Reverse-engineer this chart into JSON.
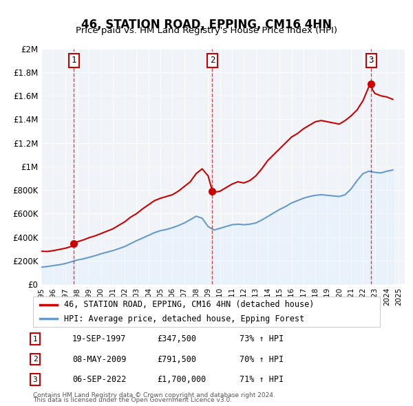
{
  "title": "46, STATION ROAD, EPPING, CM16 4HN",
  "subtitle": "Price paid vs. HM Land Registry's House Price Index (HPI)",
  "x_start": 1995.0,
  "x_end": 2025.5,
  "y_max": 2000000,
  "y_ticks": [
    0,
    200000,
    400000,
    600000,
    800000,
    1000000,
    1200000,
    1400000,
    1600000,
    1800000,
    2000000
  ],
  "y_tick_labels": [
    "£0",
    "£200K",
    "£400K",
    "£600K",
    "£800K",
    "£1M",
    "£1.2M",
    "£1.4M",
    "£1.6M",
    "£1.8M",
    "£2M"
  ],
  "x_ticks": [
    1995,
    1996,
    1997,
    1998,
    1999,
    2000,
    2001,
    2002,
    2003,
    2004,
    2005,
    2006,
    2007,
    2008,
    2009,
    2010,
    2011,
    2012,
    2013,
    2014,
    2015,
    2016,
    2017,
    2018,
    2019,
    2020,
    2021,
    2022,
    2023,
    2024,
    2025
  ],
  "property_color": "#cc0000",
  "hpi_color": "#6699cc",
  "hpi_fill_color": "#ddeeff",
  "background_color": "#f0f4f8",
  "plot_bg_color": "#f0f4f8",
  "grid_color": "#ffffff",
  "purchases": [
    {
      "label": "1",
      "date_str": "19-SEP-1997",
      "year": 1997.72,
      "price": 347500,
      "hpi_pct": "73%"
    },
    {
      "label": "2",
      "date_str": "08-MAY-2009",
      "year": 2009.35,
      "price": 791500,
      "hpi_pct": "70%"
    },
    {
      "label": "3",
      "date_str": "06-SEP-2022",
      "year": 2022.68,
      "price": 1700000,
      "hpi_pct": "71%"
    }
  ],
  "legend_property_label": "46, STATION ROAD, EPPING, CM16 4HN (detached house)",
  "legend_hpi_label": "HPI: Average price, detached house, Epping Forest",
  "footer_line1": "Contains HM Land Registry data © Crown copyright and database right 2024.",
  "footer_line2": "This data is licensed under the Open Government Licence v3.0.",
  "property_series": {
    "years": [
      1995.0,
      1995.5,
      1996.0,
      1996.5,
      1997.0,
      1997.5,
      1997.72,
      1998.0,
      1998.5,
      1999.0,
      1999.5,
      2000.0,
      2000.5,
      2001.0,
      2001.5,
      2002.0,
      2002.5,
      2003.0,
      2003.5,
      2004.0,
      2004.5,
      2005.0,
      2005.5,
      2006.0,
      2006.5,
      2007.0,
      2007.5,
      2008.0,
      2008.5,
      2009.0,
      2009.35,
      2009.5,
      2010.0,
      2010.5,
      2011.0,
      2011.5,
      2012.0,
      2012.5,
      2013.0,
      2013.5,
      2014.0,
      2014.5,
      2015.0,
      2015.5,
      2016.0,
      2016.5,
      2017.0,
      2017.5,
      2018.0,
      2018.5,
      2019.0,
      2019.5,
      2020.0,
      2020.5,
      2021.0,
      2021.5,
      2022.0,
      2022.5,
      2022.68,
      2022.8,
      2023.0,
      2023.5,
      2024.0,
      2024.5
    ],
    "values": [
      280000,
      278000,
      285000,
      295000,
      305000,
      320000,
      347500,
      360000,
      375000,
      395000,
      410000,
      430000,
      450000,
      470000,
      500000,
      530000,
      570000,
      600000,
      640000,
      675000,
      710000,
      730000,
      745000,
      760000,
      790000,
      830000,
      870000,
      940000,
      980000,
      920000,
      791500,
      780000,
      790000,
      820000,
      850000,
      870000,
      860000,
      880000,
      920000,
      980000,
      1050000,
      1100000,
      1150000,
      1200000,
      1250000,
      1280000,
      1320000,
      1350000,
      1380000,
      1390000,
      1380000,
      1370000,
      1360000,
      1390000,
      1430000,
      1480000,
      1560000,
      1680000,
      1700000,
      1650000,
      1620000,
      1600000,
      1590000,
      1570000
    ]
  },
  "hpi_series": {
    "years": [
      1995.0,
      1995.5,
      1996.0,
      1996.5,
      1997.0,
      1997.5,
      1998.0,
      1998.5,
      1999.0,
      1999.5,
      2000.0,
      2000.5,
      2001.0,
      2001.5,
      2002.0,
      2002.5,
      2003.0,
      2003.5,
      2004.0,
      2004.5,
      2005.0,
      2005.5,
      2006.0,
      2006.5,
      2007.0,
      2007.5,
      2008.0,
      2008.5,
      2009.0,
      2009.5,
      2010.0,
      2010.5,
      2011.0,
      2011.5,
      2012.0,
      2012.5,
      2013.0,
      2013.5,
      2014.0,
      2014.5,
      2015.0,
      2015.5,
      2016.0,
      2016.5,
      2017.0,
      2017.5,
      2018.0,
      2018.5,
      2019.0,
      2019.5,
      2020.0,
      2020.5,
      2021.0,
      2021.5,
      2022.0,
      2022.5,
      2023.0,
      2023.5,
      2024.0,
      2024.5
    ],
    "values": [
      145000,
      150000,
      158000,
      165000,
      175000,
      190000,
      205000,
      215000,
      228000,
      242000,
      258000,
      272000,
      285000,
      302000,
      320000,
      345000,
      370000,
      392000,
      415000,
      438000,
      455000,
      465000,
      480000,
      498000,
      520000,
      548000,
      578000,
      560000,
      490000,
      460000,
      475000,
      490000,
      505000,
      510000,
      505000,
      510000,
      520000,
      545000,
      575000,
      605000,
      635000,
      660000,
      690000,
      710000,
      730000,
      745000,
      755000,
      760000,
      755000,
      750000,
      745000,
      760000,
      810000,
      880000,
      940000,
      960000,
      950000,
      945000,
      960000,
      970000
    ]
  }
}
